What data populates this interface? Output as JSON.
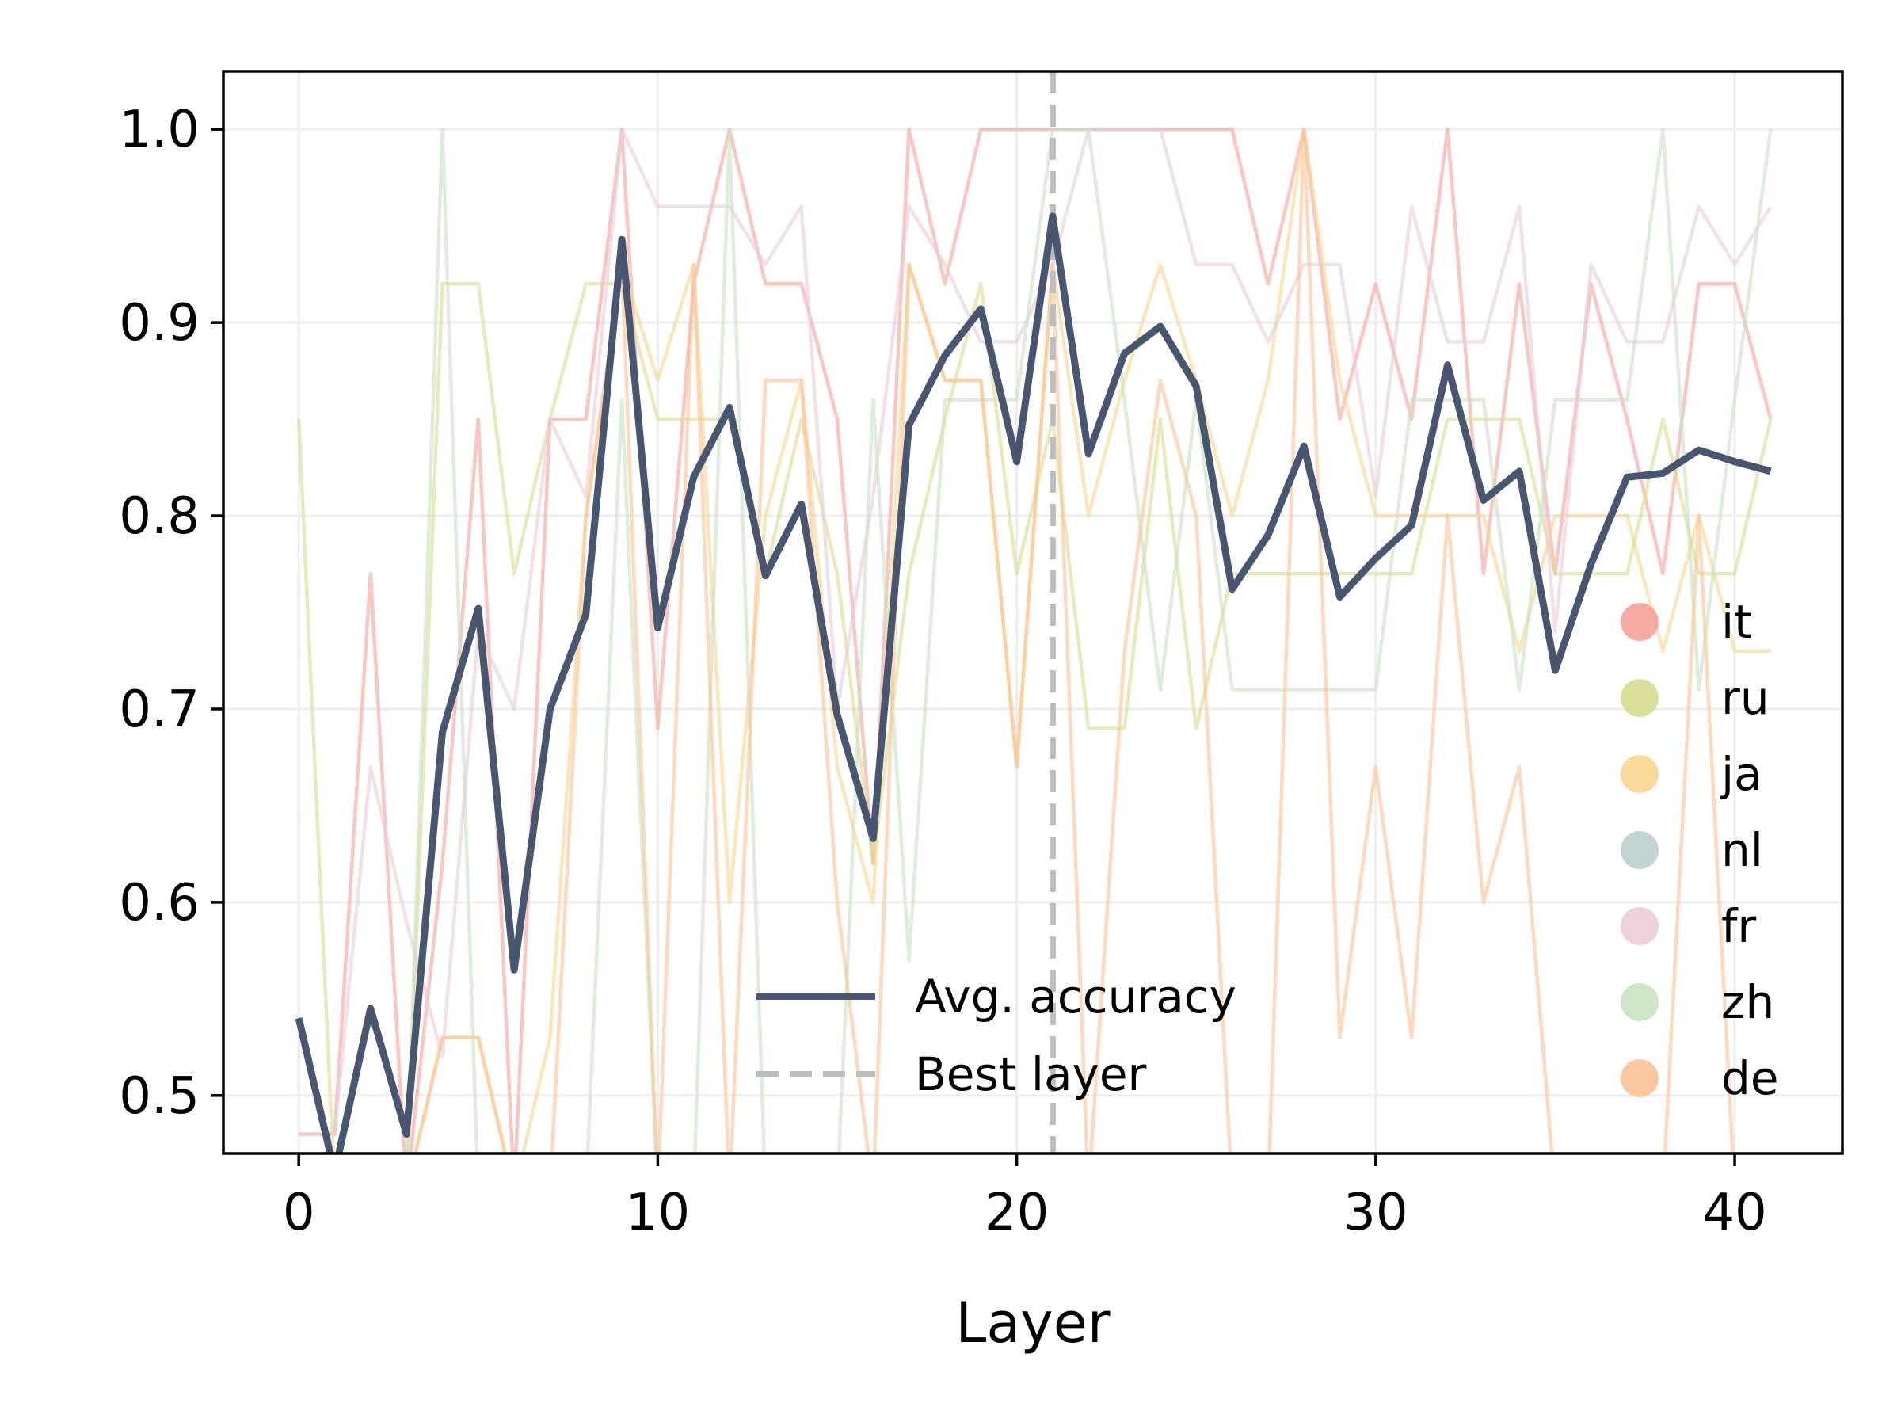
{
  "chart_data": {
    "type": "line",
    "title": "",
    "xlabel": "Layer",
    "ylabel": "",
    "xlim": [
      -2.1,
      43.0
    ],
    "ylim": [
      0.47,
      1.03
    ],
    "grid": true,
    "x_ticks": [
      0,
      10,
      20,
      30,
      40
    ],
    "y_ticks": [
      0.5,
      0.6,
      0.7,
      0.8,
      0.9,
      1.0
    ],
    "x_tick_labels": [
      "0",
      "10",
      "20",
      "30",
      "40"
    ],
    "y_tick_labels": [
      "0.5",
      "0.6",
      "0.7",
      "0.8",
      "0.9",
      "1.0"
    ],
    "x": [
      0,
      1,
      2,
      3,
      4,
      5,
      6,
      7,
      8,
      9,
      10,
      11,
      12,
      13,
      14,
      15,
      16,
      17,
      18,
      19,
      20,
      21,
      22,
      23,
      24,
      25,
      26,
      27,
      28,
      29,
      30,
      31,
      32,
      33,
      34,
      35,
      36,
      37,
      38,
      39,
      40,
      41
    ],
    "series": [
      {
        "name": "it",
        "color": "#f4a29a",
        "values": [
          0.48,
          0.48,
          0.77,
          0.45,
          0.62,
          0.85,
          0.45,
          0.85,
          0.85,
          1.0,
          0.69,
          0.92,
          1.0,
          0.92,
          0.92,
          0.85,
          0.62,
          1.0,
          0.92,
          1.0,
          1.0,
          1.0,
          1.0,
          1.0,
          1.0,
          1.0,
          1.0,
          0.92,
          1.0,
          0.85,
          0.92,
          0.85,
          1.0,
          0.77,
          0.92,
          0.77,
          0.92,
          0.85,
          0.77,
          0.92,
          0.92,
          0.85
        ]
      },
      {
        "name": "ru",
        "color": "#d8dc8e",
        "values": [
          0.85,
          0.45,
          0.45,
          0.45,
          0.92,
          0.92,
          0.77,
          0.85,
          0.92,
          0.92,
          0.85,
          0.85,
          0.85,
          0.77,
          0.85,
          0.77,
          0.62,
          0.77,
          0.85,
          0.92,
          0.77,
          0.85,
          0.69,
          0.69,
          0.85,
          0.69,
          0.77,
          0.77,
          0.77,
          0.77,
          0.77,
          0.77,
          0.85,
          0.85,
          0.85,
          0.77,
          0.77,
          0.77,
          0.85,
          0.77,
          0.77,
          0.85
        ]
      },
      {
        "name": "ja",
        "color": "#f8d68f",
        "values": [
          0.47,
          0.45,
          0.45,
          0.45,
          0.53,
          0.53,
          0.45,
          0.53,
          0.8,
          0.93,
          0.87,
          0.93,
          0.6,
          0.8,
          0.87,
          0.67,
          0.6,
          0.93,
          0.87,
          0.87,
          0.67,
          0.93,
          0.8,
          0.87,
          0.93,
          0.87,
          0.8,
          0.87,
          1.0,
          0.87,
          0.8,
          0.8,
          0.8,
          0.8,
          0.73,
          0.8,
          0.8,
          0.8,
          0.73,
          0.8,
          0.73,
          0.73
        ]
      },
      {
        "name": "nl",
        "color": "#bcd0ce",
        "values": [
          0.45,
          0.45,
          0.45,
          0.45,
          0.45,
          0.45,
          0.45,
          0.45,
          0.45,
          0.45,
          0.45,
          0.45,
          0.45,
          0.45,
          0.45,
          0.45,
          0.45,
          0.45,
          0.45,
          0.45,
          0.45,
          0.45,
          0.45,
          0.45,
          0.45,
          0.45,
          0.45,
          0.45,
          0.45,
          0.45,
          0.45,
          0.45,
          0.45,
          0.45,
          0.45,
          0.45,
          0.45,
          0.45,
          0.45,
          0.45,
          0.45,
          0.45
        ]
      },
      {
        "name": "fr",
        "color": "#eacbd6",
        "values": [
          0.48,
          0.48,
          0.67,
          0.59,
          0.52,
          0.74,
          0.7,
          0.85,
          0.81,
          1.0,
          0.96,
          0.96,
          0.96,
          0.93,
          0.96,
          0.7,
          0.81,
          0.96,
          0.93,
          0.89,
          0.89,
          0.93,
          1.0,
          1.0,
          1.0,
          0.93,
          0.93,
          0.89,
          0.93,
          0.93,
          0.81,
          0.96,
          0.89,
          0.89,
          0.96,
          0.74,
          0.93,
          0.89,
          0.89,
          0.96,
          0.93,
          0.96
        ]
      },
      {
        "name": "zh",
        "color": "#c8e1c1",
        "values": [
          0.45,
          0.45,
          0.45,
          0.45,
          1.0,
          0.45,
          0.45,
          0.45,
          0.45,
          0.86,
          0.45,
          0.45,
          1.0,
          0.45,
          0.45,
          0.45,
          0.86,
          0.57,
          0.86,
          0.86,
          0.86,
          1.0,
          1.0,
          0.86,
          0.71,
          0.86,
          0.71,
          0.71,
          0.71,
          0.71,
          0.71,
          0.86,
          0.86,
          0.86,
          0.71,
          0.86,
          0.86,
          0.86,
          1.0,
          0.71,
          0.86,
          1.0
        ]
      },
      {
        "name": "de",
        "color": "#fbc193",
        "values": [
          0.45,
          0.45,
          0.45,
          0.45,
          0.53,
          0.53,
          0.45,
          0.45,
          0.8,
          0.93,
          0.45,
          0.93,
          0.45,
          0.87,
          0.87,
          0.6,
          0.45,
          0.93,
          0.87,
          0.87,
          0.67,
          0.93,
          0.45,
          0.73,
          0.87,
          0.8,
          0.45,
          0.45,
          1.0,
          0.53,
          0.67,
          0.53,
          0.8,
          0.6,
          0.67,
          0.45,
          0.45,
          0.45,
          0.45,
          0.8,
          0.45,
          0.45
        ]
      },
      {
        "name": "Avg. accuracy",
        "color": "#485670",
        "values": [
          0.54,
          0.46,
          0.545,
          0.48,
          0.688,
          0.752,
          0.565,
          0.7,
          0.749,
          0.943,
          0.742,
          0.82,
          0.856,
          0.769,
          0.806,
          0.697,
          0.633,
          0.847,
          0.883,
          0.907,
          0.828,
          0.955,
          0.832,
          0.884,
          0.898,
          0.867,
          0.762,
          0.79,
          0.836,
          0.758,
          0.778,
          0.795,
          0.878,
          0.808,
          0.823,
          0.72,
          0.775,
          0.82,
          0.822,
          0.834,
          0.828,
          0.823
        ]
      }
    ],
    "best_layer": {
      "name": "Best layer",
      "x": 21,
      "color": "#bdbdbd"
    },
    "legends": [
      {
        "placement": "lower-center",
        "entries": [
          "Avg. accuracy",
          "Best layer"
        ]
      },
      {
        "placement": "lower-right",
        "entries": [
          "it",
          "ru",
          "ja",
          "nl",
          "fr",
          "zh",
          "de"
        ]
      }
    ]
  }
}
